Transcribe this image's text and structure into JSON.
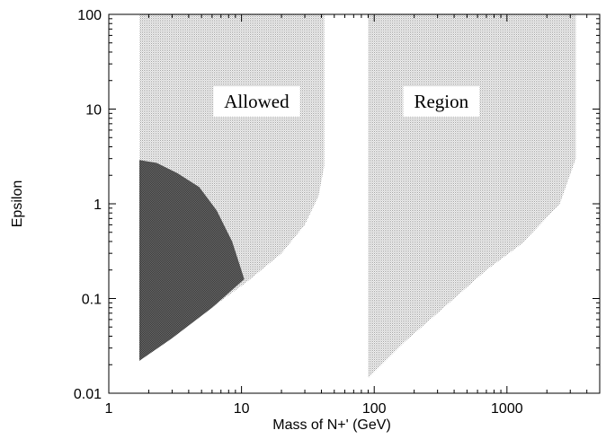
{
  "chart_data": {
    "type": "area",
    "title": "",
    "xlabel": "Mass of N+' (GeV)",
    "ylabel": "Epsilon",
    "x_scale": "log",
    "y_scale": "log",
    "xlim": [
      1,
      5000
    ],
    "ylim": [
      0.01,
      100
    ],
    "x_ticks": [
      {
        "value": 1,
        "label": "1"
      },
      {
        "value": 10,
        "label": "10"
      },
      {
        "value": 100,
        "label": "100"
      },
      {
        "value": 1000,
        "label": "1000"
      }
    ],
    "y_ticks": [
      {
        "value": 0.01,
        "label": "0.01"
      },
      {
        "value": 0.1,
        "label": "0.1"
      },
      {
        "value": 1,
        "label": "1"
      },
      {
        "value": 10,
        "label": "10"
      },
      {
        "value": 100,
        "label": "100"
      }
    ],
    "grid": false,
    "regions": [
      {
        "fill": "light-stipple",
        "points": [
          [
            1.7,
            100
          ],
          [
            42,
            100
          ],
          [
            42,
            2.5
          ],
          [
            38,
            1.2
          ],
          [
            30,
            0.6
          ],
          [
            20,
            0.3
          ],
          [
            11,
            0.15
          ],
          [
            1.7,
            0.022
          ]
        ]
      },
      {
        "fill": "light-stipple",
        "points": [
          [
            90,
            100
          ],
          [
            3300,
            100
          ],
          [
            3300,
            3
          ],
          [
            2500,
            1
          ],
          [
            1300,
            0.38
          ],
          [
            700,
            0.2
          ],
          [
            300,
            0.07
          ],
          [
            170,
            0.035
          ],
          [
            90,
            0.0145
          ]
        ]
      },
      {
        "fill": "dark-stipple",
        "points": [
          [
            1.7,
            2.9
          ],
          [
            2.3,
            2.7
          ],
          [
            3.3,
            2.1
          ],
          [
            4.8,
            1.5
          ],
          [
            6.5,
            0.85
          ],
          [
            8.5,
            0.4
          ],
          [
            10.5,
            0.16
          ],
          [
            6,
            0.08
          ],
          [
            3,
            0.038
          ],
          [
            1.7,
            0.022
          ]
        ]
      }
    ],
    "annotations": [
      {
        "text": "Allowed",
        "x": 13,
        "y": 12
      },
      {
        "text": "Region",
        "x": 320,
        "y": 12
      }
    ],
    "colors": {
      "light_dot": "#9a9a9a",
      "dark_dot": "#4a4a4a",
      "label_box": "#ffffff",
      "axis": "#000000"
    }
  }
}
